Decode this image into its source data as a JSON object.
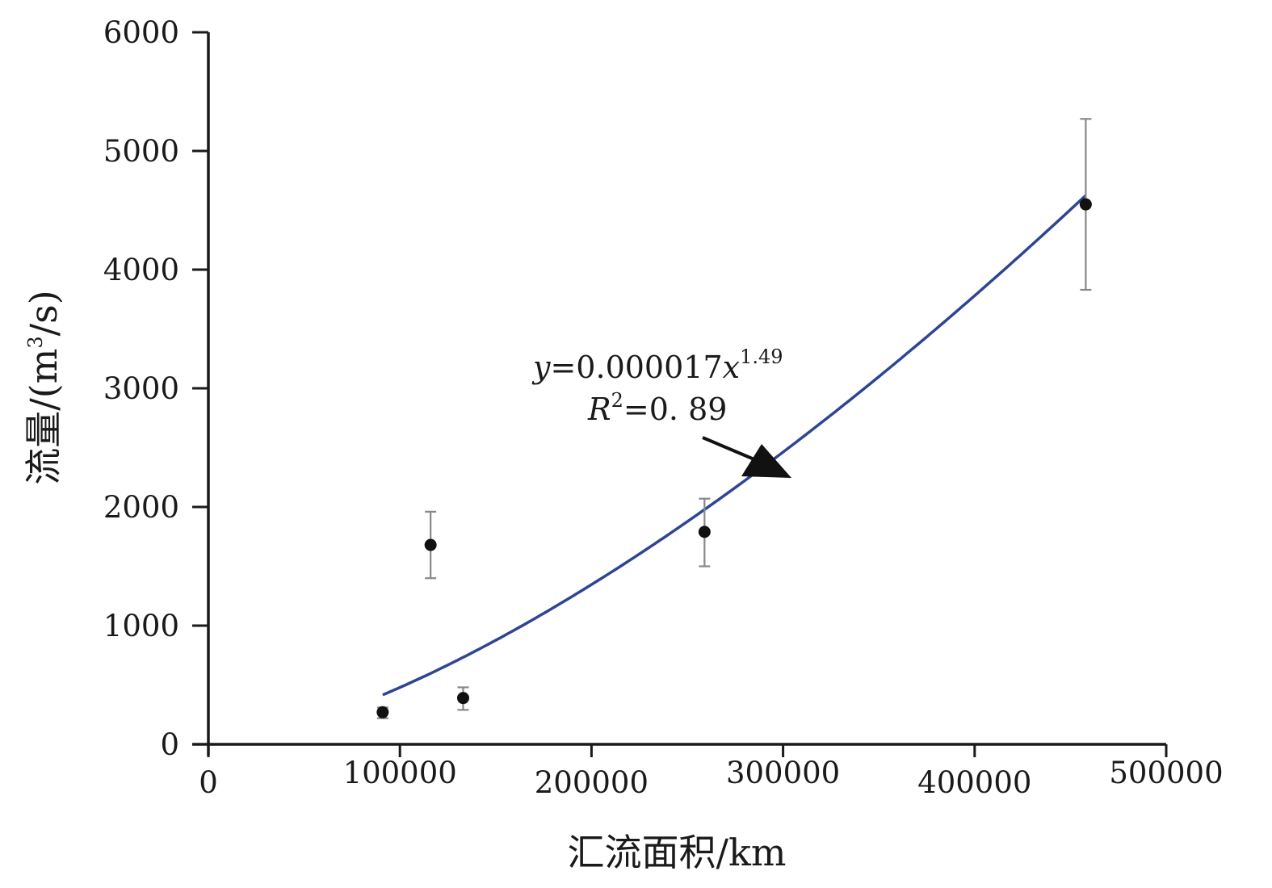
{
  "chart_data": {
    "type": "scatter",
    "title": "",
    "xlabel": "汇流面积/km",
    "ylabel": {
      "main": "流量/(m",
      "sup": "3",
      "tail": "/s)"
    },
    "xlim": [
      0,
      500000
    ],
    "ylim": [
      0,
      6000
    ],
    "x_ticks": [
      0,
      100000,
      200000,
      300000,
      400000,
      500000
    ],
    "y_ticks": [
      0,
      1000,
      2000,
      3000,
      4000,
      5000,
      6000
    ],
    "grid": false,
    "legend": "none",
    "points": [
      {
        "x": 91000,
        "y": 270,
        "err_low": 220,
        "err_high": 310
      },
      {
        "x": 116000,
        "y": 1680,
        "err_low": 1400,
        "err_high": 1960
      },
      {
        "x": 133000,
        "y": 390,
        "err_low": 290,
        "err_high": 480
      },
      {
        "x": 259000,
        "y": 1790,
        "err_low": 1500,
        "err_high": 2070
      },
      {
        "x": 458000,
        "y": 4550,
        "err_low": 3830,
        "err_high": 5270
      }
    ],
    "fit": {
      "a": 1.7e-05,
      "b": 1.49,
      "x_start": 91000,
      "x_end": 458000,
      "color": "#2f4593"
    },
    "annotation": {
      "eq_y": "y",
      "eq_body": "=0.000017",
      "eq_x": "x",
      "eq_exp": "1.49",
      "r2_r": "R",
      "r2_sup": "2",
      "r2_body": "=0. 89"
    },
    "colors": {
      "points": "#111111",
      "errorbars": "#888888",
      "axes": "#1a1a1a"
    }
  }
}
